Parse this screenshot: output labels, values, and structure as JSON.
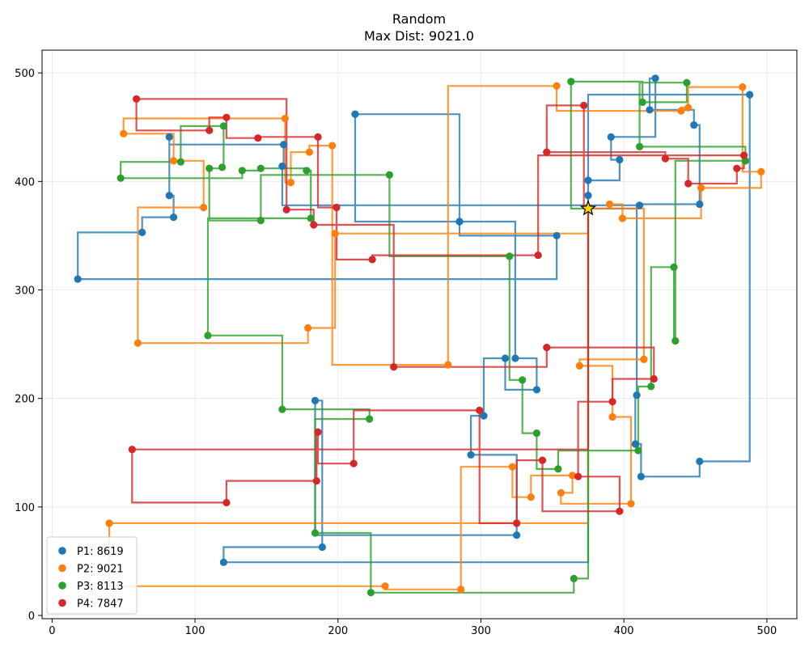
{
  "chart_data": {
    "type": "line",
    "title": "Random",
    "subtitle": "Max Dist: 9021.0",
    "xlim": [
      -7,
      521
    ],
    "ylim": [
      -3,
      521
    ],
    "xticks": [
      0,
      100,
      200,
      300,
      400,
      500
    ],
    "yticks": [
      0,
      100,
      200,
      300,
      400,
      500
    ],
    "grid": true,
    "legend_position": "lower-left",
    "start": {
      "x": 375,
      "y": 375,
      "label": "start"
    },
    "series": [
      {
        "name": "P1",
        "label": "P1: 8619",
        "color": "#1f77b4",
        "points": [
          [
            375,
            375
          ],
          [
            375,
            387
          ],
          [
            375,
            401
          ],
          [
            397,
            420
          ],
          [
            391,
            441
          ],
          [
            422,
            495
          ],
          [
            418,
            466
          ],
          [
            449,
            452
          ],
          [
            453,
            379
          ],
          [
            409,
            203
          ],
          [
            408,
            158
          ],
          [
            412,
            128
          ],
          [
            453,
            142
          ],
          [
            488,
            480
          ],
          [
            375,
            375
          ],
          [
            411,
            378
          ],
          [
            161,
            414
          ],
          [
            162,
            434
          ],
          [
            82,
            441
          ],
          [
            82,
            387
          ],
          [
            85,
            367
          ],
          [
            63,
            353
          ],
          [
            18,
            310
          ],
          [
            353,
            350
          ],
          [
            285,
            363
          ],
          [
            212,
            462
          ],
          [
            285,
            363
          ],
          [
            324,
            237
          ],
          [
            339,
            208
          ],
          [
            317,
            237
          ],
          [
            302,
            184
          ],
          [
            293,
            148
          ],
          [
            325,
            74
          ],
          [
            184,
            198
          ],
          [
            189,
            63
          ],
          [
            120,
            49
          ],
          [
            375,
            375
          ]
        ]
      },
      {
        "name": "P2",
        "label": "P2: 9021",
        "color": "#ff7f0e",
        "points": [
          [
            375,
            375
          ],
          [
            390,
            379
          ],
          [
            399,
            366
          ],
          [
            454,
            394
          ],
          [
            496,
            409
          ],
          [
            483,
            487
          ],
          [
            445,
            468
          ],
          [
            440,
            465
          ],
          [
            353,
            488
          ],
          [
            277,
            231
          ],
          [
            196,
            433
          ],
          [
            180,
            427
          ],
          [
            167,
            399
          ],
          [
            163,
            458
          ],
          [
            50,
            444
          ],
          [
            85,
            419
          ],
          [
            106,
            376
          ],
          [
            60,
            251
          ],
          [
            179,
            265
          ],
          [
            198,
            352
          ],
          [
            375,
            375
          ],
          [
            414,
            236
          ],
          [
            369,
            230
          ],
          [
            392,
            183
          ],
          [
            405,
            103
          ],
          [
            356,
            113
          ],
          [
            364,
            129
          ],
          [
            335,
            109
          ],
          [
            322,
            137
          ],
          [
            286,
            24
          ],
          [
            233,
            27
          ],
          [
            40,
            85
          ],
          [
            375,
            375
          ]
        ]
      },
      {
        "name": "P3",
        "label": "P3: 8113",
        "color": "#2ca02c",
        "points": [
          [
            375,
            375
          ],
          [
            363,
            492
          ],
          [
            413,
            473
          ],
          [
            444,
            491
          ],
          [
            411,
            432
          ],
          [
            485,
            419
          ],
          [
            436,
            253
          ],
          [
            435,
            321
          ],
          [
            419,
            211
          ],
          [
            410,
            152
          ],
          [
            354,
            135
          ],
          [
            339,
            168
          ],
          [
            329,
            217
          ],
          [
            320,
            331
          ],
          [
            236,
            406
          ],
          [
            146,
            364
          ],
          [
            110,
            412
          ],
          [
            119,
            413
          ],
          [
            120,
            451
          ],
          [
            90,
            418
          ],
          [
            48,
            403
          ],
          [
            133,
            410
          ],
          [
            146,
            412
          ],
          [
            178,
            410
          ],
          [
            181,
            366
          ],
          [
            109,
            258
          ],
          [
            161,
            190
          ],
          [
            222,
            181
          ],
          [
            184,
            76
          ],
          [
            223,
            21
          ],
          [
            365,
            34
          ],
          [
            375,
            375
          ]
        ]
      },
      {
        "name": "P4",
        "label": "P4: 7847",
        "color": "#d62728",
        "points": [
          [
            375,
            375
          ],
          [
            372,
            470
          ],
          [
            346,
            427
          ],
          [
            429,
            421
          ],
          [
            445,
            398
          ],
          [
            479,
            412
          ],
          [
            484,
            424
          ],
          [
            340,
            332
          ],
          [
            224,
            328
          ],
          [
            199,
            376
          ],
          [
            186,
            441
          ],
          [
            144,
            440
          ],
          [
            122,
            459
          ],
          [
            110,
            447
          ],
          [
            59,
            476
          ],
          [
            164,
            374
          ],
          [
            183,
            360
          ],
          [
            239,
            229
          ],
          [
            346,
            247
          ],
          [
            421,
            218
          ],
          [
            392,
            197
          ],
          [
            368,
            128
          ],
          [
            397,
            96
          ],
          [
            343,
            143
          ],
          [
            325,
            85
          ],
          [
            299,
            189
          ],
          [
            211,
            140
          ],
          [
            186,
            169
          ],
          [
            185,
            124
          ],
          [
            122,
            104
          ],
          [
            56,
            153
          ],
          [
            375,
            375
          ]
        ]
      }
    ]
  }
}
